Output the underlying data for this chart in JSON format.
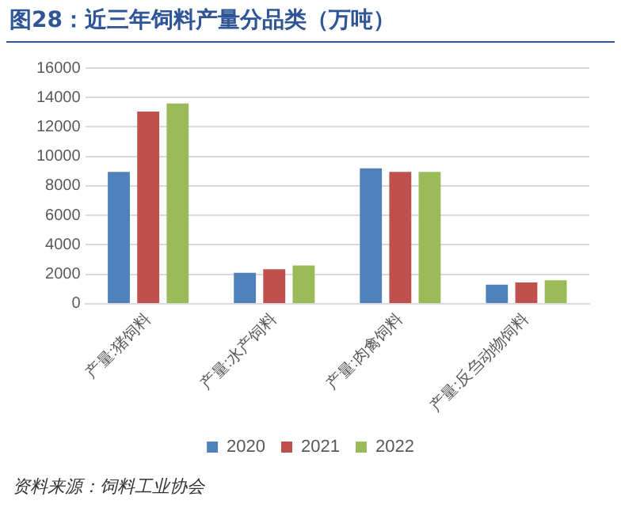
{
  "chart_data": {
    "type": "bar",
    "title": "图28：近三年饲料产量分品类（万吨）",
    "categories": [
      "产量:猪饲料",
      "产量:水产饲料",
      "产量:肉禽饲料",
      "产量:反刍动物饲料"
    ],
    "series": [
      {
        "name": "2020",
        "color": "#4f81bd",
        "values": [
          8950,
          2100,
          9200,
          1300
        ]
      },
      {
        "name": "2021",
        "color": "#c0504d",
        "values": [
          13050,
          2350,
          8950,
          1450
        ]
      },
      {
        "name": "2022",
        "color": "#9bbb59",
        "values": [
          13600,
          2600,
          8950,
          1600
        ]
      }
    ],
    "ylim": [
      0,
      16000
    ],
    "yticks": [
      0,
      2000,
      4000,
      6000,
      8000,
      10000,
      12000,
      14000,
      16000
    ],
    "grid": "y",
    "legend": "bottom",
    "annotations": [
      "资料来源：饲料工业协会"
    ]
  }
}
